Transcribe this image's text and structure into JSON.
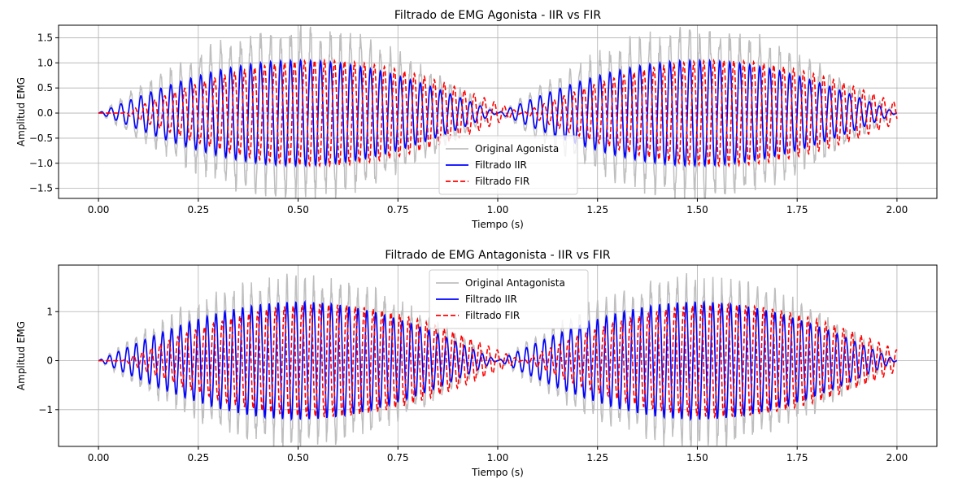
{
  "chart_data": [
    {
      "type": "line",
      "title": "Filtrado de EMG Agonista - IIR vs FIR",
      "xlabel": "Tiempo (s)",
      "ylabel": "Amplitud EMG",
      "xlim": [
        -0.1,
        2.1
      ],
      "ylim": [
        -1.7,
        1.75
      ],
      "xticks": [
        0.0,
        0.25,
        0.5,
        0.75,
        1.0,
        1.25,
        1.5,
        1.75,
        2.0
      ],
      "xtick_labels": [
        "0.00",
        "0.25",
        "0.50",
        "0.75",
        "1.00",
        "1.25",
        "1.50",
        "1.75",
        "2.00"
      ],
      "yticks": [
        -1.5,
        -1.0,
        -0.5,
        0.0,
        0.5,
        1.0,
        1.5
      ],
      "ytick_labels": [
        "−1.5",
        "−1.0",
        "−0.5",
        "0.0",
        "0.5",
        "1.0",
        "1.5"
      ],
      "grid": true,
      "legend": "lower-center",
      "series": [
        {
          "name": "Original Agonista",
          "color": "#bfbfbf",
          "style": "solid",
          "envelope_peak": 1.55,
          "carrier_hz": 40,
          "envelope_hz": 1,
          "noise": 0.3
        },
        {
          "name": "Filtrado IIR",
          "color": "#0000ff",
          "style": "solid",
          "envelope_peak": 1.05,
          "carrier_hz": 40,
          "envelope_hz": 1,
          "noise": 0
        },
        {
          "name": "Filtrado FIR",
          "color": "#ff0000",
          "style": "dashed",
          "envelope_peak": 1.05,
          "carrier_hz": 40,
          "envelope_hz": 1,
          "noise": 0,
          "delay_s": 0.06
        }
      ]
    },
    {
      "type": "line",
      "title": "Filtrado de EMG Antagonista - IIR vs FIR",
      "xlabel": "Tiempo (s)",
      "ylabel": "Amplitud EMG",
      "xlim": [
        -0.1,
        2.1
      ],
      "ylim": [
        -1.75,
        1.95
      ],
      "xticks": [
        0.0,
        0.25,
        0.5,
        0.75,
        1.0,
        1.25,
        1.5,
        1.75,
        2.0
      ],
      "xtick_labels": [
        "0.00",
        "0.25",
        "0.50",
        "0.75",
        "1.00",
        "1.25",
        "1.50",
        "1.75",
        "2.00"
      ],
      "yticks": [
        -1,
        0,
        1
      ],
      "ytick_labels": [
        "−1",
        "0",
        "1"
      ],
      "grid": true,
      "legend": "upper-center",
      "series": [
        {
          "name": "Original Antagonista",
          "color": "#bfbfbf",
          "style": "solid",
          "envelope_peak": 1.6,
          "carrier_hz": 45,
          "envelope_hz": 1,
          "noise": 0.3
        },
        {
          "name": "Filtrado IIR",
          "color": "#0000ff",
          "style": "solid",
          "envelope_peak": 1.2,
          "carrier_hz": 45,
          "envelope_hz": 1,
          "noise": 0
        },
        {
          "name": "Filtrado FIR",
          "color": "#ff0000",
          "style": "dashed",
          "envelope_peak": 1.15,
          "carrier_hz": 45,
          "envelope_hz": 1,
          "noise": 0,
          "delay_s": 0.06
        }
      ]
    }
  ]
}
